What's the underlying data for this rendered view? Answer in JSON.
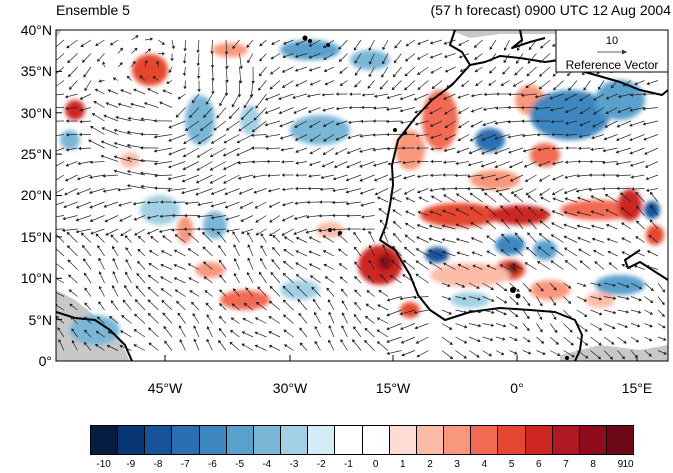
{
  "header": {
    "left_title": "Ensemble 5",
    "right_title": "(57 h forecast) 0900 UTC 12 Aug 2004"
  },
  "map": {
    "lat_ticks": [
      "40°N",
      "35°N",
      "30°N",
      "25°N",
      "20°N",
      "15°N",
      "10°N",
      "5°N",
      "0°"
    ],
    "lon_ticks": [
      "45°W",
      "30°W",
      "15°W",
      "0°",
      "15°E"
    ],
    "reference_vector": {
      "value": "10",
      "label": "Reference Vector"
    }
  },
  "colorbar": {
    "tick_labels": [
      "-10",
      "-9",
      "-8",
      "-7",
      "-6",
      "-5",
      "-4",
      "-3",
      "-2",
      "-1",
      "0",
      "1",
      "2",
      "3",
      "4",
      "5",
      "6",
      "7",
      "8",
      "9",
      "10"
    ],
    "colors": [
      "#061c40",
      "#083775",
      "#17549b",
      "#2a6fb3",
      "#3d86c0",
      "#5aa0cc",
      "#7ab6d6",
      "#a3d0e3",
      "#d3ecf6",
      "#ffffff",
      "#ffffff",
      "#fddcd4",
      "#fbbba7",
      "#f8977c",
      "#f26b52",
      "#e5462f",
      "#ce2623",
      "#b11822",
      "#8f0c1c",
      "#6d0816"
    ],
    "extreme_colors": {
      "low": "#061c40",
      "high": "#6d0816"
    }
  }
}
